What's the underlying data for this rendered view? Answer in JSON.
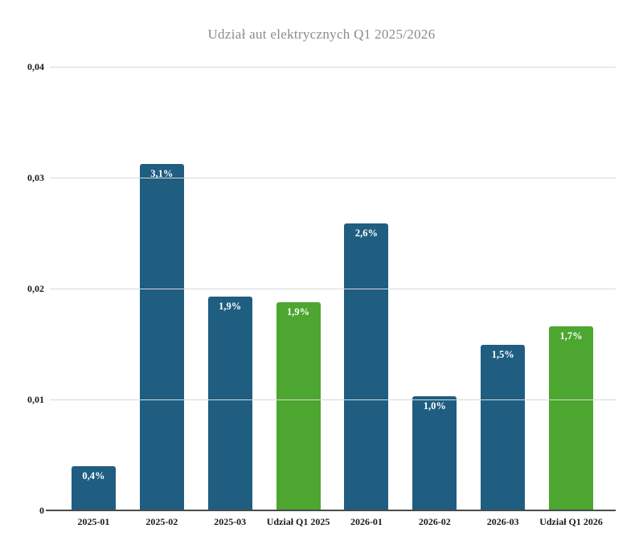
{
  "colors": {
    "bar_blue": "#1f5e81",
    "bar_green": "#4ca62f",
    "grid": "#d9d9d9",
    "axis": "#4a4a4a",
    "title_text": "#8b8b8b",
    "tick_text": "#1a1a1a",
    "bar_label_text": "#ffffff"
  },
  "chart_data": {
    "type": "bar",
    "title": "Udział aut elektrycznych Q1 2025/2026",
    "categories": [
      "2025-01",
      "2025-02",
      "2025-03",
      "Udział Q1 2025",
      "2026-01",
      "2026-02",
      "2026-03",
      "Udział Q1 2026"
    ],
    "values": [
      0.004,
      0.0312,
      0.0193,
      0.0188,
      0.0259,
      0.0103,
      0.0149,
      0.0166
    ],
    "bar_labels": [
      "0,4%",
      "3,1%",
      "1,9%",
      "1,9%",
      "2,6%",
      "1,0%",
      "1,5%",
      "1,7%"
    ],
    "bar_colors": [
      "blue",
      "blue",
      "blue",
      "green",
      "blue",
      "blue",
      "blue",
      "green"
    ],
    "xlabel": "",
    "ylabel": "",
    "ylim": [
      0,
      0.04
    ],
    "yticks": [
      "0",
      "0,01",
      "0,02",
      "0,03",
      "0,04"
    ],
    "grid": true,
    "legend": false,
    "label_position": "inside-top"
  }
}
